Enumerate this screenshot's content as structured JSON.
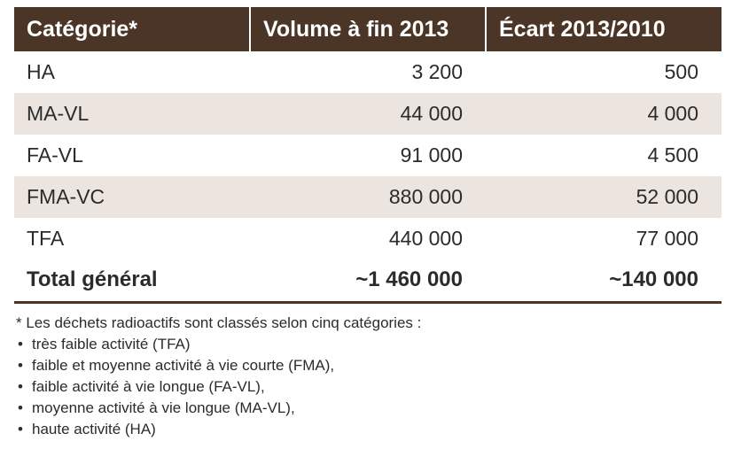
{
  "table": {
    "headers": [
      "Catégorie*",
      "Volume à fin 2013",
      "Écart 2013/2010"
    ],
    "rows": [
      {
        "category": "HA",
        "volume": "3 200",
        "ecart": "500"
      },
      {
        "category": "MA-VL",
        "volume": "44 000",
        "ecart": "4 000"
      },
      {
        "category": "FA-VL",
        "volume": "91 000",
        "ecart": "4 500"
      },
      {
        "category": "FMA-VC",
        "volume": "880 000",
        "ecart": "52 000"
      },
      {
        "category": "TFA",
        "volume": "440 000",
        "ecart": "77 000"
      }
    ],
    "total": {
      "category": "Total général",
      "volume": "~1 460 000",
      "ecart": "~140 000"
    }
  },
  "colors": {
    "header_bg": "#4a3526",
    "row_shade": "#ece5df"
  },
  "footnote": {
    "intro": "* Les déchets radioactifs sont classés selon cinq catégories :",
    "items": [
      "très faible activité (TFA)",
      "faible et moyenne activité à vie courte (FMA),",
      "faible activité à vie longue (FA-VL),",
      "moyenne activité à vie longue (MA-VL),",
      "haute activité (HA)"
    ],
    "bullet": "•"
  }
}
